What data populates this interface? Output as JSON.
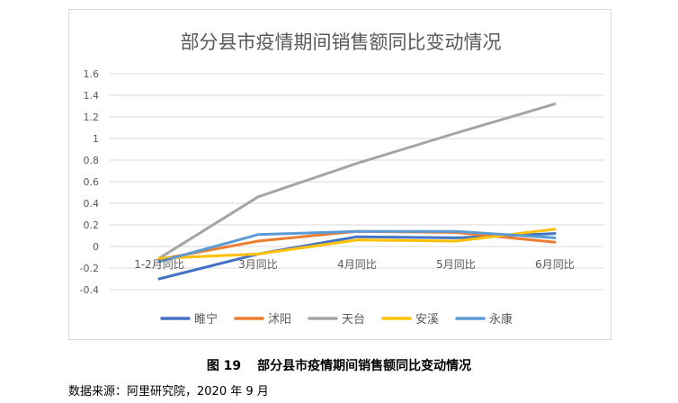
{
  "caption": {
    "figure_number": "图 19",
    "text": "部分县市疫情期间销售额同比变动情况"
  },
  "source": "数据来源：阿里研究院，2020 年 9 月",
  "chart_data": {
    "type": "line",
    "title": "部分县市疫情期间销售额同比变动情况",
    "xlabel": "",
    "ylabel": "",
    "categories": [
      "1-2月同比",
      "3月同比",
      "4月同比",
      "5月同比",
      "6月同比"
    ],
    "yticks": [
      "1.6",
      "1.4",
      "1.2",
      "1",
      "0.8",
      "0.6",
      "0.4",
      "0.2",
      "0",
      "-0.2",
      "-0.4"
    ],
    "ylim": [
      -0.4,
      1.6
    ],
    "grid": true,
    "legend_position": "bottom",
    "series": [
      {
        "name": "睢宁",
        "color": "#4472c4",
        "values": [
          -0.3,
          -0.07,
          0.09,
          0.08,
          0.12
        ]
      },
      {
        "name": "沭阳",
        "color": "#ed7d31",
        "values": [
          -0.12,
          0.05,
          0.14,
          0.13,
          0.04
        ]
      },
      {
        "name": "天台",
        "color": "#a5a5a5",
        "values": [
          -0.11,
          0.46,
          0.77,
          1.05,
          1.32
        ]
      },
      {
        "name": "安溪",
        "color": "#ffc000",
        "values": [
          -0.11,
          -0.07,
          0.06,
          0.05,
          0.16
        ]
      },
      {
        "name": "永康",
        "color": "#5b9bd5",
        "values": [
          -0.14,
          0.11,
          0.14,
          0.14,
          0.08
        ]
      }
    ]
  }
}
